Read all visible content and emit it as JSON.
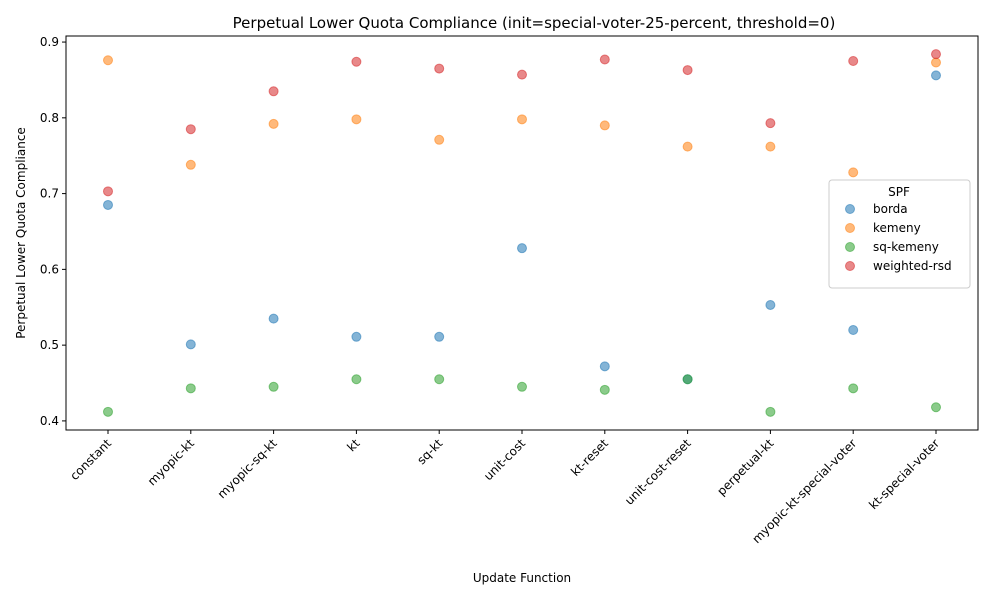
{
  "chart_data": {
    "type": "scatter",
    "title": "Perpetual Lower Quota Compliance (init=special-voter-25-percent, threshold=0)",
    "xlabel": "Update Function",
    "ylabel": "Perpetual Lower Quota Compliance",
    "categories": [
      "constant",
      "myopic-kt",
      "myopic-sq-kt",
      "kt",
      "sq-kt",
      "unit-cost",
      "kt-reset",
      "unit-cost-reset",
      "perpetual-kt",
      "myopic-kt-special-voter",
      "kt-special-voter"
    ],
    "ylim": [
      0.388,
      0.908
    ],
    "yticks": [
      "0.4",
      "0.5",
      "0.6",
      "0.7",
      "0.8",
      "0.9"
    ],
    "grid": false,
    "legend": {
      "title": "SPF",
      "placement": "center-right"
    },
    "series": [
      {
        "name": "borda",
        "color": "#1f77b4",
        "values": [
          0.685,
          0.501,
          0.535,
          0.511,
          0.511,
          0.628,
          0.472,
          0.455,
          0.553,
          0.52,
          0.856
        ]
      },
      {
        "name": "kemeny",
        "color": "#ff7f0e",
        "values": [
          0.876,
          0.738,
          0.792,
          0.798,
          0.771,
          0.798,
          0.79,
          0.762,
          0.762,
          0.728,
          0.873
        ]
      },
      {
        "name": "sq-kemeny",
        "color": "#2ca02c",
        "values": [
          0.412,
          0.443,
          0.445,
          0.455,
          0.455,
          0.445,
          0.441,
          0.455,
          0.412,
          0.443,
          0.418
        ]
      },
      {
        "name": "weighted-rsd",
        "color": "#d62728",
        "values": [
          0.703,
          0.785,
          0.835,
          0.874,
          0.865,
          0.857,
          0.877,
          0.863,
          0.793,
          0.875,
          0.884
        ]
      }
    ]
  }
}
